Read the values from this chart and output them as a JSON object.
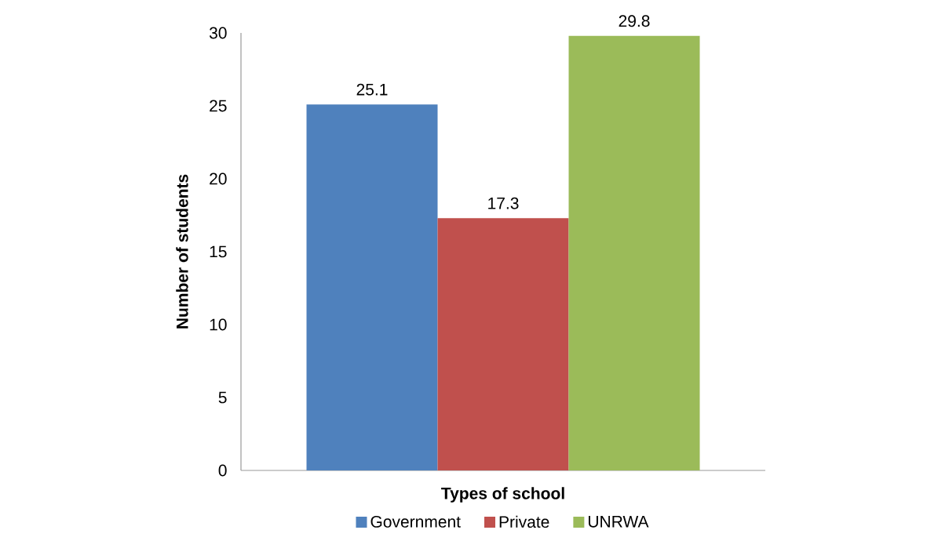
{
  "chart_data": {
    "type": "bar",
    "xlabel": "Types of school",
    "ylabel": "Number of students",
    "categories": [
      null
    ],
    "series": [
      {
        "name": "Government",
        "color": "#4f81bd",
        "values": [
          25.1
        ]
      },
      {
        "name": "Private",
        "color": "#c0504d",
        "values": [
          17.3
        ]
      },
      {
        "name": "UNRWA",
        "color": "#9bbb59",
        "values": [
          29.8
        ]
      }
    ],
    "ylim": [
      0,
      30
    ],
    "yticks": [
      0,
      5,
      10,
      15,
      20,
      25,
      30
    ],
    "data_labels": true,
    "legend": "bottom"
  }
}
